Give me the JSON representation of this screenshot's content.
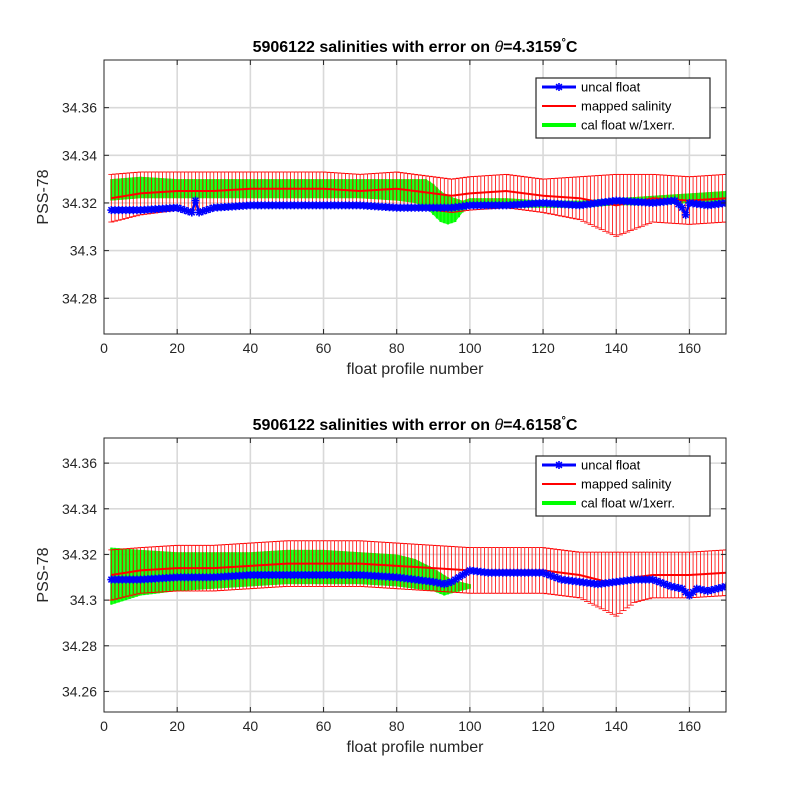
{
  "chart_data": [
    {
      "type": "line",
      "title_prefix": "5906122 salinities with error on ",
      "title_theta": "θ",
      "title_value": "=4.3159",
      "title_deg": "°",
      "title_unit": "C",
      "xlabel": "float profile number",
      "ylabel": "PSS-78",
      "xlim": [
        0,
        170
      ],
      "ylim": [
        34.265,
        34.38
      ],
      "xticks": [
        0,
        20,
        40,
        60,
        80,
        100,
        120,
        140,
        160
      ],
      "xtick_labels": [
        "0",
        "20",
        "40",
        "60",
        "80",
        "100",
        "120",
        "140",
        "160"
      ],
      "yticks": [
        34.28,
        34.3,
        34.32,
        34.34,
        34.36
      ],
      "ytick_labels": [
        "34.28",
        "34.3",
        "34.32",
        "34.34",
        "34.36"
      ],
      "grid": true,
      "legend_position": "top-right",
      "series": [
        {
          "name": "uncal float",
          "color": "#0000ff",
          "marker": "asterisk",
          "x": [
            2,
            10,
            20,
            24,
            25,
            26,
            30,
            40,
            50,
            60,
            70,
            80,
            90,
            95,
            100,
            110,
            120,
            130,
            140,
            150,
            156,
            158,
            159,
            160,
            165,
            170
          ],
          "y": [
            34.317,
            34.317,
            34.318,
            34.316,
            34.321,
            34.316,
            34.318,
            34.319,
            34.319,
            34.319,
            34.319,
            34.318,
            34.318,
            34.318,
            34.319,
            34.319,
            34.32,
            34.319,
            34.321,
            34.32,
            34.321,
            34.318,
            34.315,
            34.32,
            34.319,
            34.32
          ]
        },
        {
          "name": "mapped salinity",
          "color": "#ff0000",
          "x": [
            2,
            10,
            20,
            30,
            40,
            50,
            60,
            70,
            80,
            85,
            90,
            95,
            100,
            110,
            120,
            130,
            140,
            150,
            160,
            170
          ],
          "y": [
            34.322,
            34.324,
            34.325,
            34.325,
            34.326,
            34.326,
            34.326,
            34.325,
            34.326,
            34.325,
            34.324,
            34.323,
            34.324,
            34.325,
            34.323,
            34.322,
            34.319,
            34.322,
            34.321,
            34.322
          ],
          "error": [
            0.01,
            0.009,
            0.008,
            0.008,
            0.007,
            0.007,
            0.007,
            0.007,
            0.007,
            0.007,
            0.007,
            0.007,
            0.007,
            0.007,
            0.007,
            0.009,
            0.013,
            0.01,
            0.01,
            0.01
          ]
        },
        {
          "name": "cal float w/1xerr.",
          "color": "#00ff00",
          "x": [
            2,
            10,
            20,
            30,
            40,
            50,
            60,
            70,
            80,
            85,
            88,
            90,
            92,
            94,
            96,
            98,
            100,
            110,
            120,
            130,
            140,
            150,
            160,
            170
          ],
          "y_upper": [
            34.33,
            34.331,
            34.33,
            34.33,
            34.33,
            34.33,
            34.33,
            34.33,
            34.33,
            34.33,
            34.33,
            34.328,
            34.325,
            34.323,
            34.322,
            34.321,
            34.322,
            34.322,
            34.321,
            34.321,
            34.322,
            34.323,
            34.324,
            34.325
          ],
          "y_lower": [
            34.321,
            34.322,
            34.322,
            34.322,
            34.322,
            34.322,
            34.322,
            34.322,
            34.321,
            34.32,
            34.318,
            34.315,
            34.312,
            34.311,
            34.312,
            34.316,
            34.319,
            34.318,
            34.318,
            34.318,
            34.319,
            34.319,
            34.32,
            34.32
          ]
        }
      ]
    },
    {
      "type": "line",
      "title_prefix": "5906122 salinities with error on ",
      "title_theta": "θ",
      "title_value": "=4.6158",
      "title_deg": "°",
      "title_unit": "C",
      "xlabel": "float profile number",
      "ylabel": "PSS-78",
      "xlim": [
        0,
        170
      ],
      "ylim": [
        34.251,
        34.371
      ],
      "xticks": [
        0,
        20,
        40,
        60,
        80,
        100,
        120,
        140,
        160
      ],
      "xtick_labels": [
        "0",
        "20",
        "40",
        "60",
        "80",
        "100",
        "120",
        "140",
        "160"
      ],
      "yticks": [
        34.26,
        34.28,
        34.3,
        34.32,
        34.34,
        34.36
      ],
      "ytick_labels": [
        "34.26",
        "34.28",
        "34.3",
        "34.32",
        "34.34",
        "34.36"
      ],
      "grid": true,
      "legend_position": "top-right",
      "series": [
        {
          "name": "uncal float",
          "color": "#0000ff",
          "marker": "asterisk",
          "x": [
            2,
            10,
            20,
            30,
            40,
            50,
            60,
            70,
            80,
            90,
            93,
            95,
            100,
            105,
            110,
            115,
            120,
            125,
            130,
            135,
            140,
            145,
            150,
            155,
            158,
            160,
            162,
            165,
            170
          ],
          "y": [
            34.309,
            34.309,
            34.31,
            34.31,
            34.311,
            34.311,
            34.311,
            34.311,
            34.31,
            34.308,
            34.307,
            34.308,
            34.313,
            34.312,
            34.312,
            34.312,
            34.312,
            34.309,
            34.308,
            34.307,
            34.308,
            34.309,
            34.309,
            34.306,
            34.305,
            34.302,
            34.305,
            34.304,
            34.306
          ]
        },
        {
          "name": "mapped salinity",
          "color": "#ff0000",
          "x": [
            2,
            10,
            20,
            30,
            40,
            50,
            60,
            70,
            80,
            90,
            100,
            110,
            120,
            130,
            135,
            140,
            145,
            150,
            160,
            170
          ],
          "y": [
            34.311,
            34.313,
            34.314,
            34.314,
            34.315,
            34.316,
            34.316,
            34.316,
            34.315,
            34.314,
            34.313,
            34.313,
            34.313,
            34.311,
            34.309,
            34.307,
            34.31,
            34.311,
            34.311,
            34.312
          ],
          "error": [
            0.011,
            0.01,
            0.01,
            0.01,
            0.01,
            0.01,
            0.01,
            0.01,
            0.01,
            0.01,
            0.01,
            0.01,
            0.01,
            0.01,
            0.012,
            0.014,
            0.011,
            0.01,
            0.01,
            0.01
          ]
        },
        {
          "name": "cal float w/1xerr.",
          "color": "#00ff00",
          "x": [
            2,
            10,
            20,
            30,
            40,
            50,
            60,
            70,
            80,
            85,
            90,
            93,
            95,
            100
          ],
          "y_upper": [
            34.323,
            34.322,
            34.321,
            34.321,
            34.321,
            34.322,
            34.322,
            34.321,
            34.32,
            34.318,
            34.314,
            34.311,
            34.309,
            34.307
          ],
          "y_lower": [
            34.298,
            34.302,
            34.304,
            34.305,
            34.306,
            34.307,
            34.307,
            34.307,
            34.306,
            34.305,
            34.304,
            34.302,
            34.303,
            34.305
          ]
        }
      ]
    }
  ]
}
